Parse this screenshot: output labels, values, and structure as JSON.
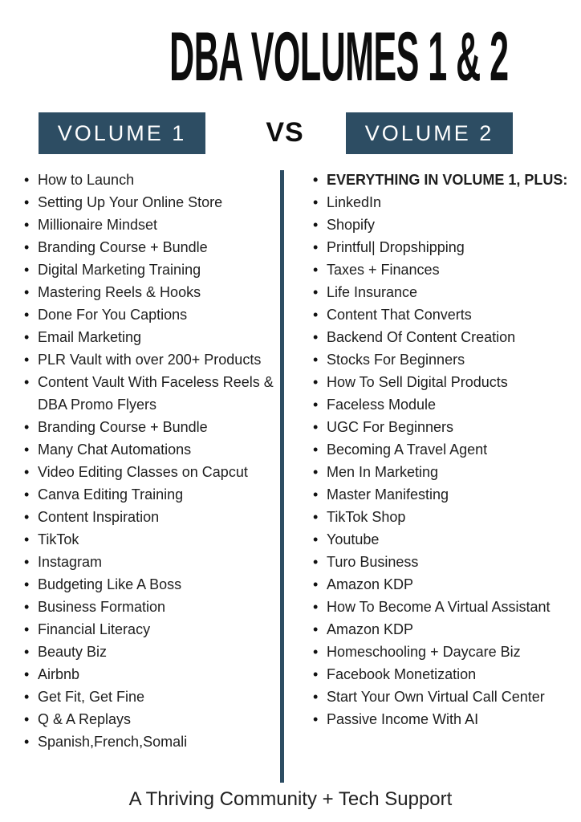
{
  "title": "DBA VOLUMES 1 & 2",
  "comparison": {
    "left_label": "VOLUME 1",
    "vs_label": "VS",
    "right_label": "VOLUME 2"
  },
  "volume1": {
    "items": [
      "How to Launch",
      "Setting Up Your Online Store",
      "Millionaire Mindset",
      "Branding Course + Bundle",
      "Digital Marketing Training",
      "Mastering Reels & Hooks",
      "Done For You Captions",
      "Email Marketing",
      "PLR Vault with over 200+ Products",
      "Content Vault With Faceless Reels &\nDBA Promo Flyers",
      "Branding Course + Bundle",
      "Many Chat Automations",
      "Video Editing Classes on Capcut",
      "Canva Editing Training",
      "Content Inspiration",
      "TikTok",
      "Instagram",
      "Budgeting Like A Boss",
      "Business Formation",
      "Financial Literacy",
      "Beauty Biz",
      "Airbnb",
      "Get Fit, Get Fine",
      "Q & A Replays",
      "Spanish,French,Somali"
    ]
  },
  "volume2": {
    "items": [
      {
        "label": "EVERYTHING IN VOLUME 1, PLUS:",
        "bold": true
      },
      "LinkedIn",
      "Shopify",
      "Printful| Dropshipping",
      "Taxes + Finances",
      "Life Insurance",
      "Content That Converts",
      "Backend Of Content Creation",
      "Stocks For Beginners",
      "How To Sell Digital Products",
      "Faceless Module",
      "UGC For Beginners",
      "Becoming A Travel Agent",
      "Men In Marketing",
      "Master Manifesting",
      "TikTok Shop",
      "Youtube",
      "Turo Business",
      "Amazon KDP",
      "How To Become A Virtual Assistant",
      "Amazon KDP",
      "Homeschooling + Daycare Biz",
      "Facebook Monetization",
      "Start Your Own Virtual Call Center",
      "Passive Income With AI"
    ]
  },
  "footer": "A Thriving Community + Tech Support",
  "colors": {
    "accent": "#2d4d63",
    "text": "#1e1e1e",
    "background": "#ffffff"
  }
}
